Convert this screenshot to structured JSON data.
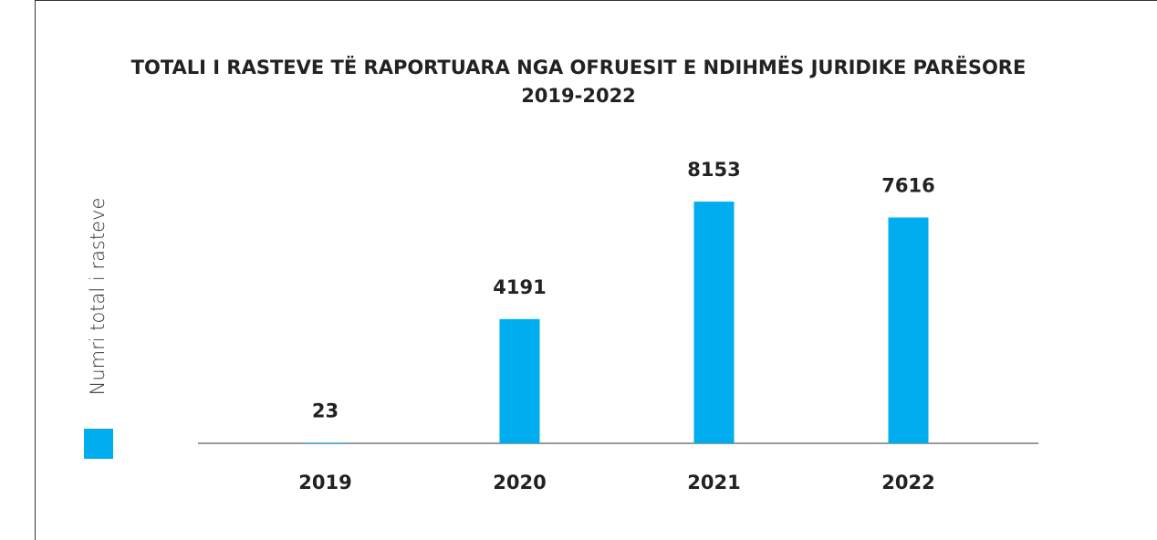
{
  "chart_data": {
    "type": "bar",
    "title": [
      "TOTALI I RASTEVE TË RAPORTUARA NGA OFRUESIT E NDIHMËS JURIDIKE PARËSORE",
      "2019-2022"
    ],
    "categories": [
      "2019",
      "2020",
      "2021",
      "2022"
    ],
    "series": [
      {
        "name": "Numri total i rasteve",
        "color": "#00aeef",
        "values": [
          23,
          4191,
          8153,
          7616
        ]
      }
    ],
    "ylim": [
      0,
      10000
    ]
  }
}
